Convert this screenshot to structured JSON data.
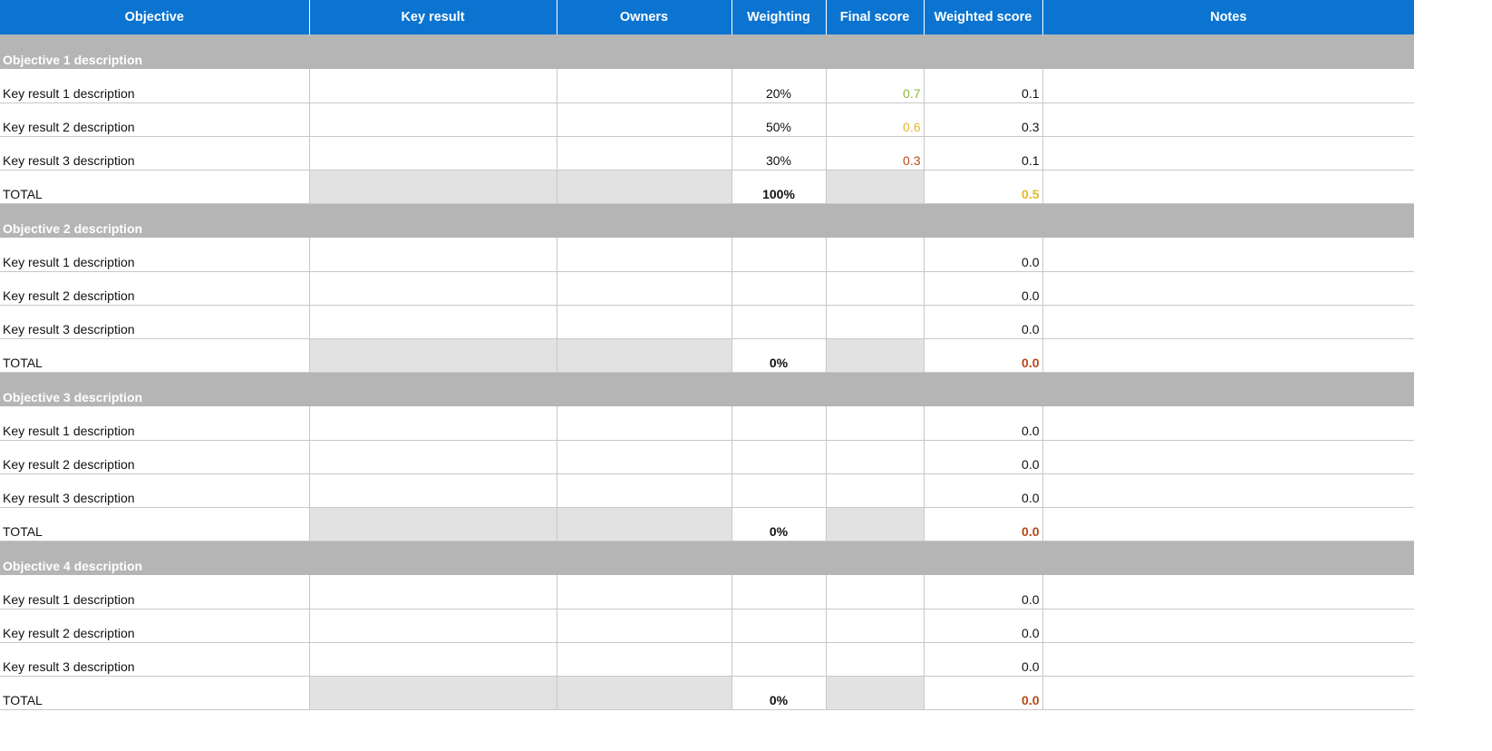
{
  "header": {
    "objective": "Objective",
    "key_result": "Key result",
    "owners": "Owners",
    "weighting": "Weighting",
    "final_score": "Final score",
    "weighted_score": "Weighted score",
    "notes": "Notes"
  },
  "colors": {
    "header_bg": "#0b74d1",
    "section_bg": "#b5b5b5",
    "total_shade": "#e2e2e2",
    "score_green": "#8ab63f",
    "score_yellow": "#e6b82e",
    "score_red": "#b5481a"
  },
  "objectives": [
    {
      "title": "Objective 1 description",
      "rows": [
        {
          "label": "Key result 1 description",
          "key_result": "",
          "owners": "",
          "weighting": "20%",
          "final_score": "0.7",
          "final_color": "#8ab63f",
          "weighted_score": "0.1",
          "notes": ""
        },
        {
          "label": "Key result 2 description",
          "key_result": "",
          "owners": "",
          "weighting": "50%",
          "final_score": "0.6",
          "final_color": "#e6b82e",
          "weighted_score": "0.3",
          "notes": ""
        },
        {
          "label": "Key result 3 description",
          "key_result": "",
          "owners": "",
          "weighting": "30%",
          "final_score": "0.3",
          "final_color": "#b5481a",
          "weighted_score": "0.1",
          "notes": ""
        }
      ],
      "total": {
        "label": "TOTAL",
        "weighting": "100%",
        "weighted_score": "0.5",
        "weighted_color": "#e6b82e"
      }
    },
    {
      "title": "Objective 2 description",
      "rows": [
        {
          "label": "Key result 1 description",
          "key_result": "",
          "owners": "",
          "weighting": "",
          "final_score": "",
          "final_color": "#111111",
          "weighted_score": "0.0",
          "notes": ""
        },
        {
          "label": "Key result 2 description",
          "key_result": "",
          "owners": "",
          "weighting": "",
          "final_score": "",
          "final_color": "#111111",
          "weighted_score": "0.0",
          "notes": ""
        },
        {
          "label": "Key result 3 description",
          "key_result": "",
          "owners": "",
          "weighting": "",
          "final_score": "",
          "final_color": "#111111",
          "weighted_score": "0.0",
          "notes": ""
        }
      ],
      "total": {
        "label": "TOTAL",
        "weighting": "0%",
        "weighted_score": "0.0",
        "weighted_color": "#b5481a"
      }
    },
    {
      "title": "Objective 3 description",
      "rows": [
        {
          "label": "Key result 1 description",
          "key_result": "",
          "owners": "",
          "weighting": "",
          "final_score": "",
          "final_color": "#111111",
          "weighted_score": "0.0",
          "notes": ""
        },
        {
          "label": "Key result 2 description",
          "key_result": "",
          "owners": "",
          "weighting": "",
          "final_score": "",
          "final_color": "#111111",
          "weighted_score": "0.0",
          "notes": ""
        },
        {
          "label": "Key result 3 description",
          "key_result": "",
          "owners": "",
          "weighting": "",
          "final_score": "",
          "final_color": "#111111",
          "weighted_score": "0.0",
          "notes": ""
        }
      ],
      "total": {
        "label": "TOTAL",
        "weighting": "0%",
        "weighted_score": "0.0",
        "weighted_color": "#b5481a"
      }
    },
    {
      "title": "Objective 4 description",
      "rows": [
        {
          "label": "Key result 1 description",
          "key_result": "",
          "owners": "",
          "weighting": "",
          "final_score": "",
          "final_color": "#111111",
          "weighted_score": "0.0",
          "notes": ""
        },
        {
          "label": "Key result 2 description",
          "key_result": "",
          "owners": "",
          "weighting": "",
          "final_score": "",
          "final_color": "#111111",
          "weighted_score": "0.0",
          "notes": ""
        },
        {
          "label": "Key result 3 description",
          "key_result": "",
          "owners": "",
          "weighting": "",
          "final_score": "",
          "final_color": "#111111",
          "weighted_score": "0.0",
          "notes": ""
        }
      ],
      "total": {
        "label": "TOTAL",
        "weighting": "0%",
        "weighted_score": "0.0",
        "weighted_color": "#b5481a"
      }
    }
  ]
}
